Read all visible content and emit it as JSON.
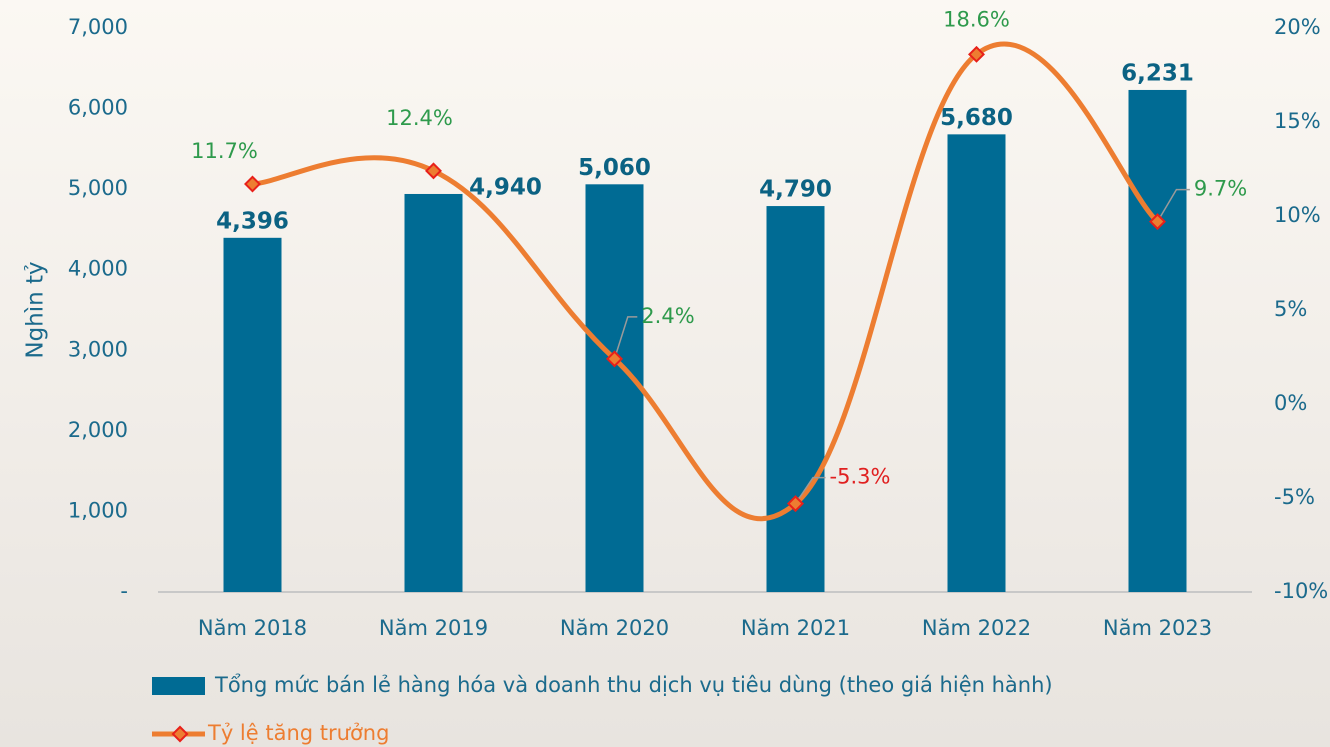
{
  "chart_data": {
    "type": "bar+line",
    "y_label": "Nghìn tỷ",
    "categories": [
      "Năm 2018",
      "Năm 2019",
      "Năm 2020",
      "Năm 2021",
      "Năm 2022",
      "Năm 2023"
    ],
    "series": [
      {
        "name": "Tổng mức bán lẻ hàng hóa và doanh thu dịch vụ tiêu dùng (theo giá hiện hành)",
        "type": "bar",
        "color": "#006b94",
        "values": [
          4396,
          4940,
          5060,
          4790,
          5680,
          6231
        ],
        "value_labels": [
          "4,396",
          "4,940",
          "5,060",
          "4,790",
          "5,680",
          "6,231"
        ]
      },
      {
        "name": "Tỷ lệ tăng trưởng",
        "type": "line",
        "axis": "y2",
        "color": "#ed7d31",
        "marker_color": "#e8201a",
        "values": [
          11.7,
          12.4,
          2.4,
          -5.3,
          18.6,
          9.7
        ],
        "value_labels": [
          "11.7%",
          "12.4%",
          "2.4%",
          "-5.3%",
          "18.6%",
          "9.7%"
        ],
        "positive_label_color": "#2e9a4c",
        "negative_label_color": "#e02020"
      }
    ],
    "ylim": [
      0,
      7000
    ],
    "yticks": [
      {
        "value": 0,
        "label": "-"
      },
      {
        "value": 1000,
        "label": "1,000"
      },
      {
        "value": 2000,
        "label": "2,000"
      },
      {
        "value": 3000,
        "label": "3,000"
      },
      {
        "value": 4000,
        "label": "4,000"
      },
      {
        "value": 5000,
        "label": "5,000"
      },
      {
        "value": 6000,
        "label": "6,000"
      },
      {
        "value": 7000,
        "label": "7,000"
      }
    ],
    "y2lim": [
      -10,
      20
    ],
    "y2ticks": [
      {
        "value": -10,
        "label": "-10%"
      },
      {
        "value": -5,
        "label": "-5%"
      },
      {
        "value": 0,
        "label": "0%"
      },
      {
        "value": 5,
        "label": "5%"
      },
      {
        "value": 10,
        "label": "10%"
      },
      {
        "value": 15,
        "label": "15%"
      },
      {
        "value": 20,
        "label": "20%"
      }
    ],
    "legend": "bottom-left"
  }
}
